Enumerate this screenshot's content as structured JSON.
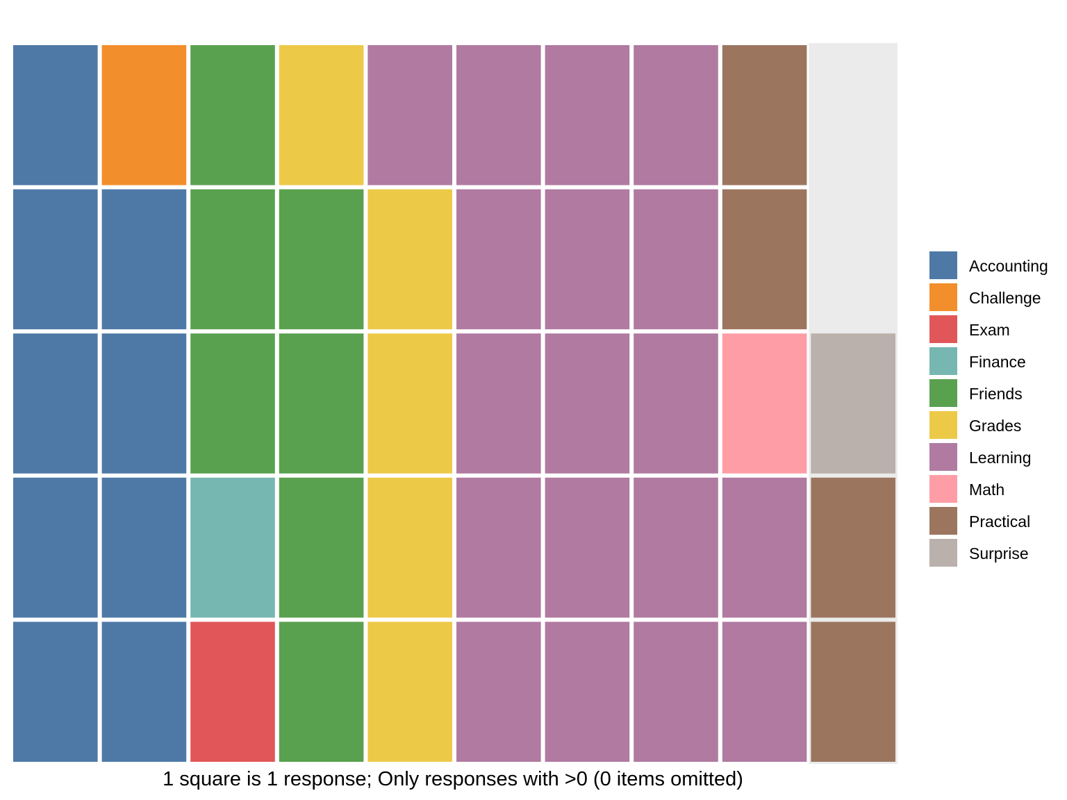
{
  "chart_data": {
    "type": "waffle",
    "unit": "1 square is 1 response",
    "caption": "1 square is 1 response; Only responses with >0 (0 items omitted)",
    "rows": 5,
    "columns": 10,
    "fill_order": "column-major, bottom to top",
    "categories": [
      "Accounting",
      "Challenge",
      "Exam",
      "Finance",
      "Friends",
      "Grades",
      "Learning",
      "Math",
      "Practical",
      "Surprise"
    ],
    "values": [
      9,
      1,
      1,
      1,
      7,
      5,
      18,
      1,
      4,
      1
    ],
    "total": 48,
    "colors": [
      "#4E79A7",
      "#F28E2B",
      "#E15759",
      "#76B7B2",
      "#59A14F",
      "#EDC948",
      "#B07AA1",
      "#FF9DA7",
      "#9C755F",
      "#BAB0AC"
    ],
    "empty_color": "#EBEBEB",
    "cells": [
      "Accounting",
      "Accounting",
      "Accounting",
      "Accounting",
      "Accounting",
      "Accounting",
      "Accounting",
      "Accounting",
      "Accounting",
      "Challenge",
      "Exam",
      "Finance",
      "Friends",
      "Friends",
      "Friends",
      "Friends",
      "Friends",
      "Friends",
      "Friends",
      "Grades",
      "Grades",
      "Grades",
      "Grades",
      "Grades",
      "Learning",
      "Learning",
      "Learning",
      "Learning",
      "Learning",
      "Learning",
      "Learning",
      "Learning",
      "Learning",
      "Learning",
      "Learning",
      "Learning",
      "Learning",
      "Learning",
      "Learning",
      "Learning",
      "Learning",
      "Learning",
      "Math",
      "Practical",
      "Practical",
      "Practical",
      "Practical",
      "Surprise"
    ],
    "legend_position": "right"
  }
}
